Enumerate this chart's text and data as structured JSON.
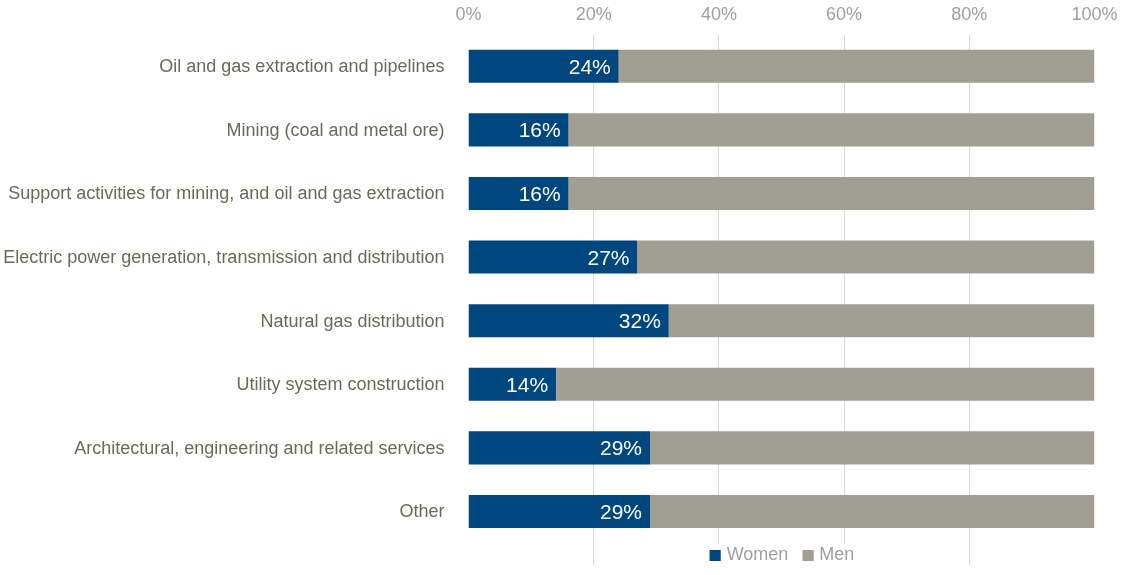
{
  "chart_data": {
    "type": "bar",
    "orientation": "horizontal",
    "stacked": true,
    "categories": [
      "Oil and gas extraction and pipelines",
      "Mining (coal and metal ore)",
      "Support activities for mining, and oil and gas extraction",
      "Electric power generation, transmission and distribution",
      "Natural gas distribution",
      "Utility system construction",
      "Architectural, engineering and related services",
      "Other"
    ],
    "series": [
      {
        "name": "Women",
        "color": "#00467f",
        "values": [
          24,
          16,
          16,
          27,
          32,
          14,
          29,
          29
        ],
        "value_labels": [
          "24%",
          "16%",
          "16%",
          "27%",
          "32%",
          "14%",
          "29%",
          "29%"
        ]
      },
      {
        "name": "Men",
        "color": "#a19f94",
        "values": [
          76,
          84,
          84,
          73,
          68,
          86,
          71,
          71
        ]
      }
    ],
    "xlim": [
      0,
      100
    ],
    "xticks": [
      {
        "value": 0,
        "label": "0%"
      },
      {
        "value": 20,
        "label": "20%"
      },
      {
        "value": 40,
        "label": "40%"
      },
      {
        "value": 60,
        "label": "60%"
      },
      {
        "value": 80,
        "label": "80%"
      },
      {
        "value": 100,
        "label": "100%"
      }
    ],
    "grid": "x",
    "legend": "bottom"
  }
}
